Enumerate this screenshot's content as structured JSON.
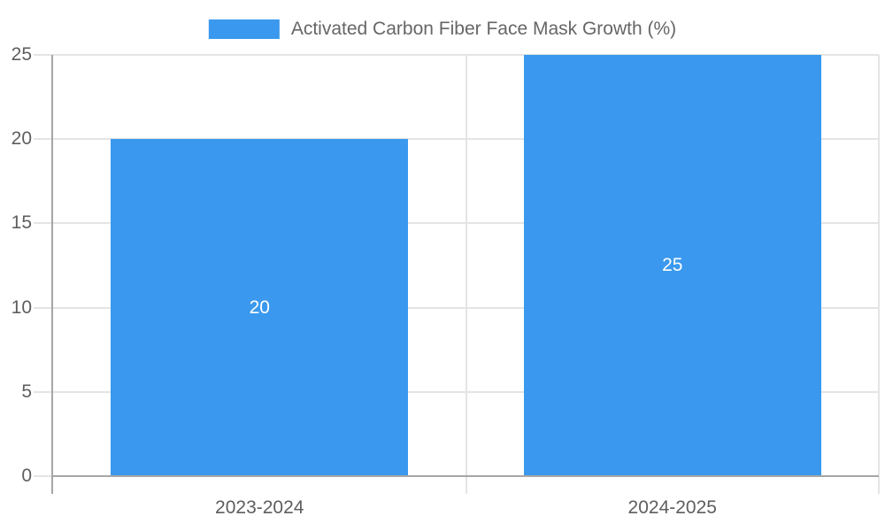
{
  "chart_data": {
    "type": "bar",
    "legend": {
      "label": "Activated Carbon Fiber Face Mask Growth (%)",
      "position": "top"
    },
    "categories": [
      "2023-2024",
      "2024-2025"
    ],
    "values": [
      20,
      25
    ],
    "data_labels": [
      "20",
      "25"
    ],
    "ylim": [
      0,
      25
    ],
    "yticks": [
      "0",
      "5",
      "10",
      "15",
      "20",
      "25"
    ],
    "grid": true,
    "layout_hints": {
      "bar_label_position": "center-of-bar",
      "legend_swatch": "rectangle"
    },
    "colors": {
      "bar": "#3A99EE",
      "grid": "#E4E4E4",
      "axis": "#A6A6A6",
      "tick_text": "#5E5E60",
      "legend_text": "#666666",
      "data_label_text": "#FFFFFF",
      "background": "#FFFFFF"
    }
  }
}
